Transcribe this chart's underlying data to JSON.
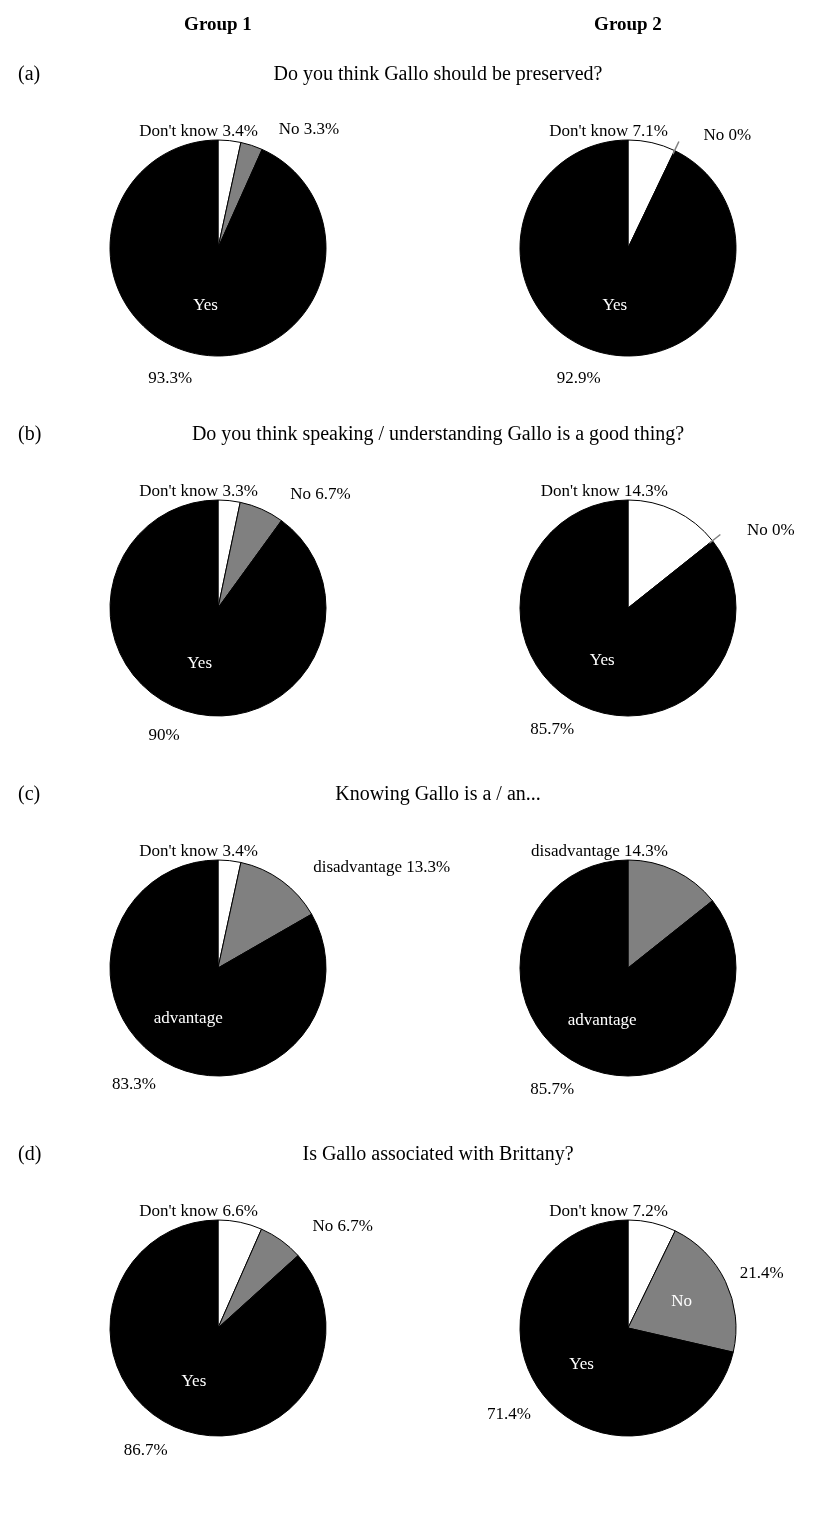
{
  "chart_data": [
    {
      "type": "pie",
      "subtitle": "Group 1",
      "title": "Do you think Gallo should be preserved?",
      "annotations": [
        "(a)"
      ],
      "categories": [
        "Don't know",
        "No",
        "Yes"
      ],
      "values": [
        3.4,
        3.3,
        93.3
      ],
      "value_labels": [
        "3.4%",
        "3.3%",
        "93.3%"
      ],
      "colors": [
        "#ffffff",
        "#808080",
        "#000000"
      ]
    },
    {
      "type": "pie",
      "subtitle": "Group 2",
      "categories": [
        "Don't know",
        "No",
        "Yes"
      ],
      "values": [
        7.1,
        0,
        92.9
      ],
      "value_labels": [
        "7.1%",
        "0%",
        "92.9%"
      ],
      "colors": [
        "#ffffff",
        "#808080",
        "#000000"
      ]
    },
    {
      "type": "pie",
      "title": "Do you think speaking / understanding Gallo is a good thing?",
      "annotations": [
        "(b)"
      ],
      "categories": [
        "Don't know",
        "No",
        "Yes"
      ],
      "values": [
        3.3,
        6.7,
        90
      ],
      "value_labels": [
        "3.3%",
        "6.7%",
        "90%"
      ],
      "colors": [
        "#ffffff",
        "#808080",
        "#000000"
      ]
    },
    {
      "type": "pie",
      "categories": [
        "Don't know",
        "No",
        "Yes"
      ],
      "values": [
        14.3,
        0,
        85.7
      ],
      "value_labels": [
        "14.3%",
        "0%",
        "85.7%"
      ],
      "colors": [
        "#ffffff",
        "#808080",
        "#000000"
      ]
    },
    {
      "type": "pie",
      "title": "Knowing Gallo is a / an...",
      "annotations": [
        "(c)"
      ],
      "categories": [
        "Don't know",
        "disadvantage",
        "advantage"
      ],
      "values": [
        3.4,
        13.3,
        83.3
      ],
      "value_labels": [
        "3.4%",
        "13.3%",
        "83.3%"
      ],
      "colors": [
        "#ffffff",
        "#808080",
        "#000000"
      ]
    },
    {
      "type": "pie",
      "categories": [
        "disadvantage",
        "advantage"
      ],
      "values": [
        14.3,
        85.7
      ],
      "value_labels": [
        "14.3%",
        "85.7%"
      ],
      "colors": [
        "#808080",
        "#000000"
      ]
    },
    {
      "type": "pie",
      "title": "Is Gallo associated with Brittany?",
      "annotations": [
        "(d)"
      ],
      "categories": [
        "Don't know",
        "No",
        "Yes"
      ],
      "values": [
        6.6,
        6.7,
        86.7
      ],
      "value_labels": [
        "6.6%",
        "6.7%",
        "86.7%"
      ],
      "colors": [
        "#ffffff",
        "#808080",
        "#000000"
      ]
    },
    {
      "type": "pie",
      "categories": [
        "Don't know",
        "No",
        "Yes"
      ],
      "values": [
        7.2,
        21.4,
        71.4
      ],
      "value_labels": [
        "7.2%",
        "21.4%",
        "71.4%"
      ],
      "colors": [
        "#ffffff",
        "#808080",
        "#000000"
      ]
    }
  ]
}
